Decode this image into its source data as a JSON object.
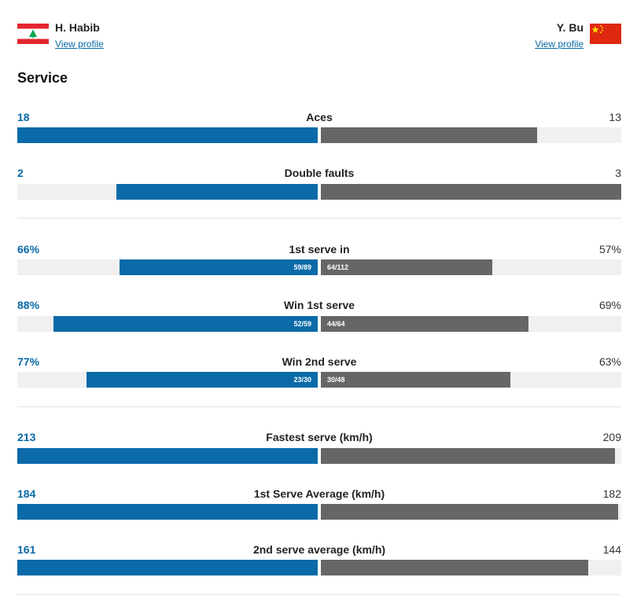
{
  "player1": {
    "name": "H. Habib",
    "link": "View profile",
    "flag": "lebanon-flag-icon"
  },
  "player2": {
    "name": "Y. Bu",
    "link": "View profile",
    "flag": "china-flag-icon"
  },
  "section": {
    "title": "Service"
  },
  "stats": [
    {
      "label": "Aces",
      "left": "18",
      "right": "13",
      "left_share": 1.0,
      "right_share": 0.72
    },
    {
      "label": "Double faults",
      "left": "2",
      "right": "3",
      "left_share": 0.67,
      "right_share": 1.0
    },
    {
      "label": "1st serve in",
      "left": "66%",
      "right": "57%",
      "left_sub": "59/89",
      "right_sub": "64/112",
      "left_share": 0.66,
      "right_share": 0.57
    },
    {
      "label": "Win 1st serve",
      "left": "88%",
      "right": "69%",
      "left_sub": "52/59",
      "right_sub": "44/64",
      "left_share": 0.88,
      "right_share": 0.69
    },
    {
      "label": "Win 2nd serve",
      "left": "77%",
      "right": "63%",
      "left_sub": "23/30",
      "right_sub": "30/48",
      "left_share": 0.77,
      "right_share": 0.63
    },
    {
      "label": "Fastest serve (km/h)",
      "left": "213",
      "right": "209",
      "left_share": 1.0,
      "right_share": 0.98
    },
    {
      "label": "1st Serve Average (km/h)",
      "left": "184",
      "right": "182",
      "left_share": 1.0,
      "right_share": 0.99
    },
    {
      "label": "2nd serve average (km/h)",
      "left": "161",
      "right": "144",
      "left_share": 1.0,
      "right_share": 0.89
    }
  ],
  "colors": {
    "player1": "#0b6aa8",
    "player2": "#666666",
    "track": "#f0f0f0"
  }
}
